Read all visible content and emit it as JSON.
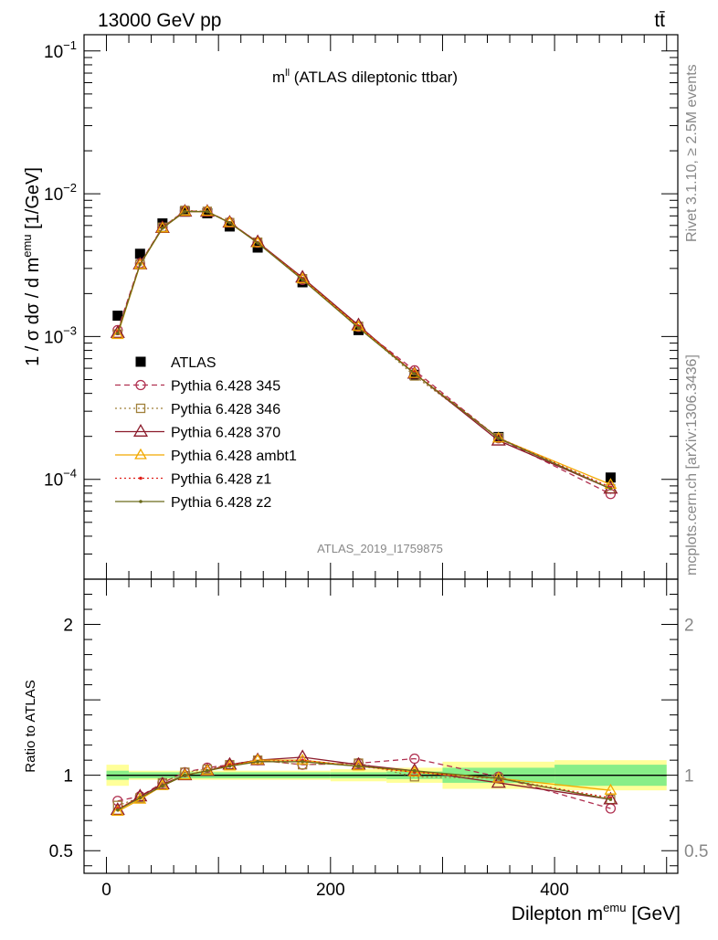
{
  "header": {
    "left": "13000 GeV pp",
    "right": "tt̄"
  },
  "side": {
    "rivet": "Rivet 3.1.10, ≥ 2.5M events",
    "mcplots": "mcplots.cern.ch [arXiv:1306.3436]"
  },
  "watermark": "ATLAS_2019_I1759875",
  "chart_data": [
    {
      "type": "line",
      "title": "m^ll (ATLAS dileptonic ttbar)",
      "title_main": "m",
      "title_sup": "ll",
      "title_rest": " (ATLAS dileptonic ttbar)",
      "ylabel": "1 / σ  dσ / d m^emu [1/GeV]",
      "ylabel_main": "1 / σ  dσ / d m",
      "ylabel_sup": "emu",
      "ylabel_unit": " [1/GeV]",
      "yscale": "log",
      "ylim": [
        2e-05,
        0.13
      ],
      "xlim": [
        -20,
        510
      ],
      "yticks": [
        {
          "value": 0.1,
          "base": "10",
          "exp": "−1"
        },
        {
          "value": 0.01,
          "base": "10",
          "exp": "−2"
        },
        {
          "value": 0.001,
          "base": "10",
          "exp": "−3"
        },
        {
          "value": 0.0001,
          "base": "10",
          "exp": "−4"
        }
      ],
      "x": [
        10,
        30,
        50,
        70,
        90,
        110,
        135,
        175,
        225,
        275,
        350,
        450
      ],
      "legend_position": "left-center",
      "series": [
        {
          "name": "ATLAS",
          "color": "#000000",
          "marker": "square",
          "dash": "none",
          "values": [
            0.0014,
            0.0038,
            0.0062,
            0.0075,
            0.0073,
            0.0059,
            0.0042,
            0.0024,
            0.00111,
            0.00054,
            0.000198,
            0.000103
          ]
        },
        {
          "name": "Pythia 6.428 345",
          "color": "#b03050",
          "marker": "circle",
          "dash": "6,4",
          "values": [
            0.00111,
            0.00326,
            0.00582,
            0.0076,
            0.0075,
            0.00633,
            0.00455,
            0.0025,
            0.00117,
            0.00058,
            0.000194,
            7.9e-05
          ]
        },
        {
          "name": "Pythia 6.428 346",
          "color": "#a0803a",
          "marker": "open-square",
          "dash": "2,3",
          "values": [
            0.00104,
            0.00321,
            0.00583,
            0.00765,
            0.00753,
            0.00628,
            0.00458,
            0.00254,
            0.00118,
            0.00053,
            0.000196,
            8.6e-05
          ]
        },
        {
          "name": "Pythia 6.428 370",
          "color": "#8b1a2a",
          "marker": "triangle",
          "dash": "none",
          "values": [
            0.00106,
            0.0032,
            0.00576,
            0.0075,
            0.00749,
            0.00628,
            0.00459,
            0.00259,
            0.0012,
            0.00055,
            0.000187,
            8.6e-05
          ]
        },
        {
          "name": "Pythia 6.428 ambt1",
          "color": "#f2a900",
          "marker": "open-triangle",
          "dash": "none",
          "values": [
            0.00103,
            0.00318,
            0.00574,
            0.0075,
            0.00751,
            0.00627,
            0.00452,
            0.00253,
            0.00117,
            0.00055,
            0.000194,
            9.2e-05
          ]
        },
        {
          "name": "Pythia 6.428 z1",
          "color": "#e0201a",
          "marker": "dot",
          "dash": "2,3",
          "values": [
            0.00108,
            0.00323,
            0.00578,
            0.00752,
            0.00752,
            0.00628,
            0.00455,
            0.00253,
            0.00117,
            0.00056,
            0.000195,
            8.8e-05
          ]
        },
        {
          "name": "Pythia 6.428 z2",
          "color": "#6b6b1a",
          "marker": "dot",
          "dash": "none",
          "values": [
            0.00105,
            0.0032,
            0.00574,
            0.0075,
            0.0075,
            0.00626,
            0.00452,
            0.0025,
            0.00115,
            0.00055,
            0.000194,
            8.6e-05
          ]
        }
      ]
    },
    {
      "type": "line",
      "ylabel": "Ratio to ATLAS",
      "xlabel": "Dilepton m^emu [GeV]",
      "xlabel_main": "Dilepton m",
      "xlabel_sup": "emu",
      "xlabel_unit": " [GeV]",
      "ylim": [
        0.35,
        2.3
      ],
      "xlim": [
        -20,
        510
      ],
      "yticks": [
        {
          "value": 0.5,
          "label": "0.5"
        },
        {
          "value": 1,
          "label": "1"
        },
        {
          "value": 2,
          "label": "2"
        }
      ],
      "xticks": [
        {
          "value": 0,
          "label": "0"
        },
        {
          "value": 200,
          "label": "200"
        },
        {
          "value": 400,
          "label": "400"
        }
      ],
      "bands": [
        {
          "x0": 0,
          "x1": 20,
          "inner": 0.03,
          "outer": 0.07
        },
        {
          "x0": 20,
          "x1": 200,
          "inner": 0.02,
          "outer": 0.03
        },
        {
          "x0": 200,
          "x1": 250,
          "inner": 0.02,
          "outer": 0.04
        },
        {
          "x0": 250,
          "x1": 300,
          "inner": 0.025,
          "outer": 0.05
        },
        {
          "x0": 300,
          "x1": 400,
          "inner": 0.05,
          "outer": 0.09
        },
        {
          "x0": 400,
          "x1": 500,
          "inner": 0.07,
          "outer": 0.1
        }
      ],
      "x": [
        10,
        30,
        50,
        70,
        90,
        110,
        135,
        175,
        225,
        275,
        350,
        450
      ],
      "series": [
        {
          "name": "Pythia 6.428 345",
          "values": [
            0.83,
            0.86,
            0.95,
            1.02,
            1.05,
            1.07,
            1.1,
            1.07,
            1.08,
            1.11,
            0.99,
            0.78
          ]
        },
        {
          "name": "Pythia 6.428 346",
          "values": [
            0.8,
            0.85,
            0.95,
            1.02,
            1.04,
            1.07,
            1.1,
            1.07,
            1.08,
            0.99,
            0.98,
            0.84
          ]
        },
        {
          "name": "Pythia 6.428 370",
          "values": [
            0.77,
            0.86,
            0.94,
            1.0,
            1.03,
            1.07,
            1.1,
            1.12,
            1.07,
            1.03,
            0.95,
            0.84
          ]
        },
        {
          "name": "Pythia 6.428 ambt1",
          "values": [
            0.76,
            0.84,
            0.93,
            1.0,
            1.03,
            1.06,
            1.1,
            1.1,
            1.06,
            1.02,
            0.98,
            0.9
          ]
        },
        {
          "name": "Pythia 6.428 z1",
          "values": [
            0.78,
            0.85,
            0.93,
            1.0,
            1.03,
            1.07,
            1.09,
            1.1,
            1.06,
            1.02,
            0.98,
            0.85
          ]
        },
        {
          "name": "Pythia 6.428 z2",
          "values": [
            0.77,
            0.85,
            0.93,
            1.0,
            1.03,
            1.06,
            1.09,
            1.09,
            1.06,
            1.03,
            0.98,
            0.84
          ]
        }
      ]
    }
  ]
}
